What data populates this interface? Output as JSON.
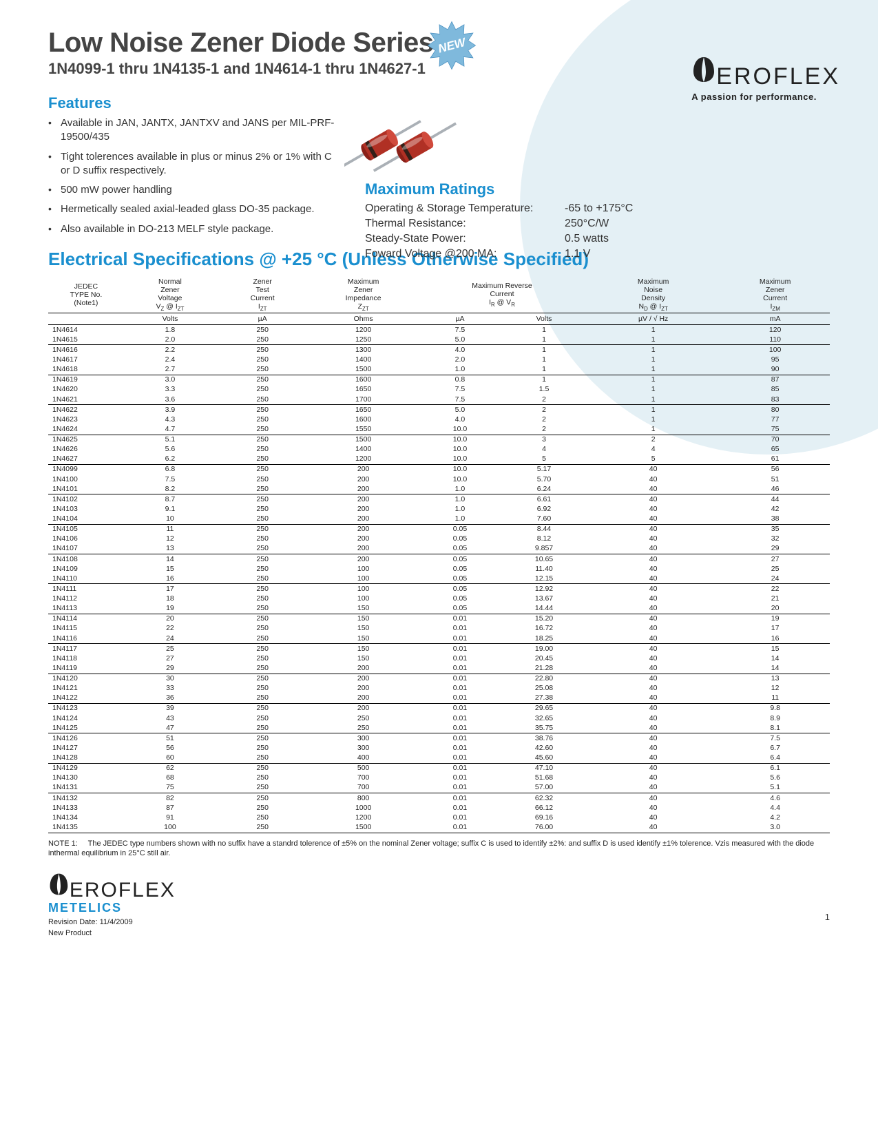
{
  "colors": {
    "accent": "#1a8fcf",
    "circle_bg": "#e4f0f5",
    "text": "#333333",
    "table_text": "#222222",
    "diode_body": "#b03024",
    "diode_band": "#331f18",
    "diode_wire": "#aab0b6"
  },
  "header": {
    "title": "Low Noise Zener Diode Series",
    "subtitle": "1N4099-1 thru 1N4135-1 and 1N4614-1 thru 1N4627-1",
    "new_badge": "NEW"
  },
  "logo": {
    "name": "EROFLEX",
    "tagline": "A passion for performance.",
    "sub_brand": "METELICS"
  },
  "features": {
    "heading": "Features",
    "items": [
      "Available in JAN, JANTX, JANTXV and JANS per MIL-PRF-19500/435",
      "Tight tolerences available in plus or minus 2% or 1% with C or D suffix respectively.",
      "500 mW power handling",
      "Hermetically sealed axial-leaded glass DO-35 package.",
      "Also available in DO-213 MELF style package."
    ]
  },
  "max_ratings": {
    "heading": "Maximum Ratings",
    "rows": [
      {
        "label": "Operating & Storage Temperature:",
        "value": "-65 to +175°C"
      },
      {
        "label": "Thermal Resistance:",
        "value": "250°C/W"
      },
      {
        "label": "Steady-State Power:",
        "value": "0.5 watts"
      },
      {
        "label": "Foward Voltage @200 MA:",
        "value": "1.1 V"
      }
    ]
  },
  "elec": {
    "heading": "Electrical Specifications @ +25 °C (Unless Otherwise Specified)",
    "columns": [
      {
        "h1": "JEDEC",
        "h2": "TYPE No.",
        "h3": "(Note1)",
        "unit": ""
      },
      {
        "h1": "Normal",
        "h2": "Zener",
        "h3": "Voltage",
        "sym": "V_Z @ I_ZT",
        "unit": "Volts"
      },
      {
        "h1": "Zener",
        "h2": "Test",
        "h3": "Current",
        "sym": "I_ZT",
        "unit": "µA"
      },
      {
        "h1": "Maximum",
        "h2": "Zener",
        "h3": "Impedance",
        "sym": "Z_ZT",
        "unit": "Ohms"
      },
      {
        "h1": "Maximum Reverse",
        "h2": "Current",
        "h3": "I_R @ V_R",
        "unit_a": "µA",
        "unit_b": "Volts"
      },
      {
        "h1": "Maximum",
        "h2": "Noise",
        "h3": "Density",
        "sym": "N_D @ I_ZT",
        "unit": "µV / √ Hz"
      },
      {
        "h1": "Maximum",
        "h2": "Zener",
        "h3": "Current",
        "sym": "I_ZM",
        "unit": "mA"
      }
    ],
    "groups": [
      [
        [
          "1N4614",
          "1.8",
          "250",
          "1200",
          "7.5",
          "1",
          "1",
          "120"
        ],
        [
          "1N4615",
          "2.0",
          "250",
          "1250",
          "5.0",
          "1",
          "1",
          "110"
        ]
      ],
      [
        [
          "1N4616",
          "2.2",
          "250",
          "1300",
          "4.0",
          "1",
          "1",
          "100"
        ],
        [
          "1N4617",
          "2.4",
          "250",
          "1400",
          "2.0",
          "1",
          "1",
          "95"
        ],
        [
          "1N4618",
          "2.7",
          "250",
          "1500",
          "1.0",
          "1",
          "1",
          "90"
        ]
      ],
      [
        [
          "1N4619",
          "3.0",
          "250",
          "1600",
          "0.8",
          "1",
          "1",
          "87"
        ],
        [
          "1N4620",
          "3.3",
          "250",
          "1650",
          "7.5",
          "1.5",
          "1",
          "85"
        ],
        [
          "1N4621",
          "3.6",
          "250",
          "1700",
          "7.5",
          "2",
          "1",
          "83"
        ]
      ],
      [
        [
          "1N4622",
          "3.9",
          "250",
          "1650",
          "5.0",
          "2",
          "1",
          "80"
        ],
        [
          "1N4623",
          "4.3",
          "250",
          "1600",
          "4.0",
          "2",
          "1",
          "77"
        ],
        [
          "1N4624",
          "4.7",
          "250",
          "1550",
          "10.0",
          "2",
          "1",
          "75"
        ]
      ],
      [
        [
          "1N4625",
          "5.1",
          "250",
          "1500",
          "10.0",
          "3",
          "2",
          "70"
        ],
        [
          "1N4626",
          "5.6",
          "250",
          "1400",
          "10.0",
          "4",
          "4",
          "65"
        ],
        [
          "1N4627",
          "6.2",
          "250",
          "1200",
          "10.0",
          "5",
          "5",
          "61"
        ]
      ],
      [
        [
          "1N4099",
          "6.8",
          "250",
          "200",
          "10.0",
          "5.17",
          "40",
          "56"
        ],
        [
          "1N4100",
          "7.5",
          "250",
          "200",
          "10.0",
          "5.70",
          "40",
          "51"
        ],
        [
          "1N4101",
          "8.2",
          "250",
          "200",
          "1.0",
          "6.24",
          "40",
          "46"
        ]
      ],
      [
        [
          "1N4102",
          "8.7",
          "250",
          "200",
          "1.0",
          "6.61",
          "40",
          "44"
        ],
        [
          "1N4103",
          "9.1",
          "250",
          "200",
          "1.0",
          "6.92",
          "40",
          "42"
        ],
        [
          "1N4104",
          "10",
          "250",
          "200",
          "1.0",
          "7.60",
          "40",
          "38"
        ]
      ],
      [
        [
          "1N4105",
          "11",
          "250",
          "200",
          "0.05",
          "8.44",
          "40",
          "35"
        ],
        [
          "1N4106",
          "12",
          "250",
          "200",
          "0.05",
          "8.12",
          "40",
          "32"
        ],
        [
          "1N4107",
          "13",
          "250",
          "200",
          "0.05",
          "9.857",
          "40",
          "29"
        ]
      ],
      [
        [
          "1N4108",
          "14",
          "250",
          "200",
          "0.05",
          "10.65",
          "40",
          "27"
        ],
        [
          "1N4109",
          "15",
          "250",
          "100",
          "0.05",
          "11.40",
          "40",
          "25"
        ],
        [
          "1N4110",
          "16",
          "250",
          "100",
          "0.05",
          "12.15",
          "40",
          "24"
        ]
      ],
      [
        [
          "1N4111",
          "17",
          "250",
          "100",
          "0.05",
          "12.92",
          "40",
          "22"
        ],
        [
          "1N4112",
          "18",
          "250",
          "100",
          "0.05",
          "13.67",
          "40",
          "21"
        ],
        [
          "1N4113",
          "19",
          "250",
          "150",
          "0.05",
          "14.44",
          "40",
          "20"
        ]
      ],
      [
        [
          "1N4114",
          "20",
          "250",
          "150",
          "0.01",
          "15.20",
          "40",
          "19"
        ],
        [
          "1N4115",
          "22",
          "250",
          "150",
          "0.01",
          "16.72",
          "40",
          "17"
        ],
        [
          "1N4116",
          "24",
          "250",
          "150",
          "0.01",
          "18.25",
          "40",
          "16"
        ]
      ],
      [
        [
          "1N4117",
          "25",
          "250",
          "150",
          "0.01",
          "19.00",
          "40",
          "15"
        ],
        [
          "1N4118",
          "27",
          "250",
          "150",
          "0.01",
          "20.45",
          "40",
          "14"
        ],
        [
          "1N4119",
          "29",
          "250",
          "200",
          "0.01",
          "21.28",
          "40",
          "14"
        ]
      ],
      [
        [
          "1N4120",
          "30",
          "250",
          "200",
          "0.01",
          "22.80",
          "40",
          "13"
        ],
        [
          "1N4121",
          "33",
          "250",
          "200",
          "0.01",
          "25.08",
          "40",
          "12"
        ],
        [
          "1N4122",
          "36",
          "250",
          "200",
          "0.01",
          "27.38",
          "40",
          "11"
        ]
      ],
      [
        [
          "1N4123",
          "39",
          "250",
          "200",
          "0.01",
          "29.65",
          "40",
          "9.8"
        ],
        [
          "1N4124",
          "43",
          "250",
          "250",
          "0.01",
          "32.65",
          "40",
          "8.9"
        ],
        [
          "1N4125",
          "47",
          "250",
          "250",
          "0.01",
          "35.75",
          "40",
          "8.1"
        ]
      ],
      [
        [
          "1N4126",
          "51",
          "250",
          "300",
          "0.01",
          "38.76",
          "40",
          "7.5"
        ],
        [
          "1N4127",
          "56",
          "250",
          "300",
          "0.01",
          "42.60",
          "40",
          "6.7"
        ],
        [
          "1N4128",
          "60",
          "250",
          "400",
          "0.01",
          "45.60",
          "40",
          "6.4"
        ]
      ],
      [
        [
          "1N4129",
          "62",
          "250",
          "500",
          "0.01",
          "47.10",
          "40",
          "6.1"
        ],
        [
          "1N4130",
          "68",
          "250",
          "700",
          "0.01",
          "51.68",
          "40",
          "5.6"
        ],
        [
          "1N4131",
          "75",
          "250",
          "700",
          "0.01",
          "57.00",
          "40",
          "5.1"
        ]
      ],
      [
        [
          "1N4132",
          "82",
          "250",
          "800",
          "0.01",
          "62.32",
          "40",
          "4.6"
        ],
        [
          "1N4133",
          "87",
          "250",
          "1000",
          "0.01",
          "66.12",
          "40",
          "4.4"
        ],
        [
          "1N4134",
          "91",
          "250",
          "1200",
          "0.01",
          "69.16",
          "40",
          "4.2"
        ],
        [
          "1N4135",
          "100",
          "250",
          "1500",
          "0.01",
          "76.00",
          "40",
          "3.0"
        ]
      ]
    ],
    "note_label": "NOTE 1:",
    "note_text": "The JEDEC type numbers shown with no suffix have a standrd tolerence of ±5% on the nominal Zener voltage; suffix C is used to identify ±2%: and suffix D is used identify ±1% tolerence.  Vzis measured with the diode inthermal equilibrium in 25°C still air."
  },
  "footer": {
    "revision": "Revision Date: 11/4/2009",
    "status": "New Product",
    "page": "1"
  }
}
